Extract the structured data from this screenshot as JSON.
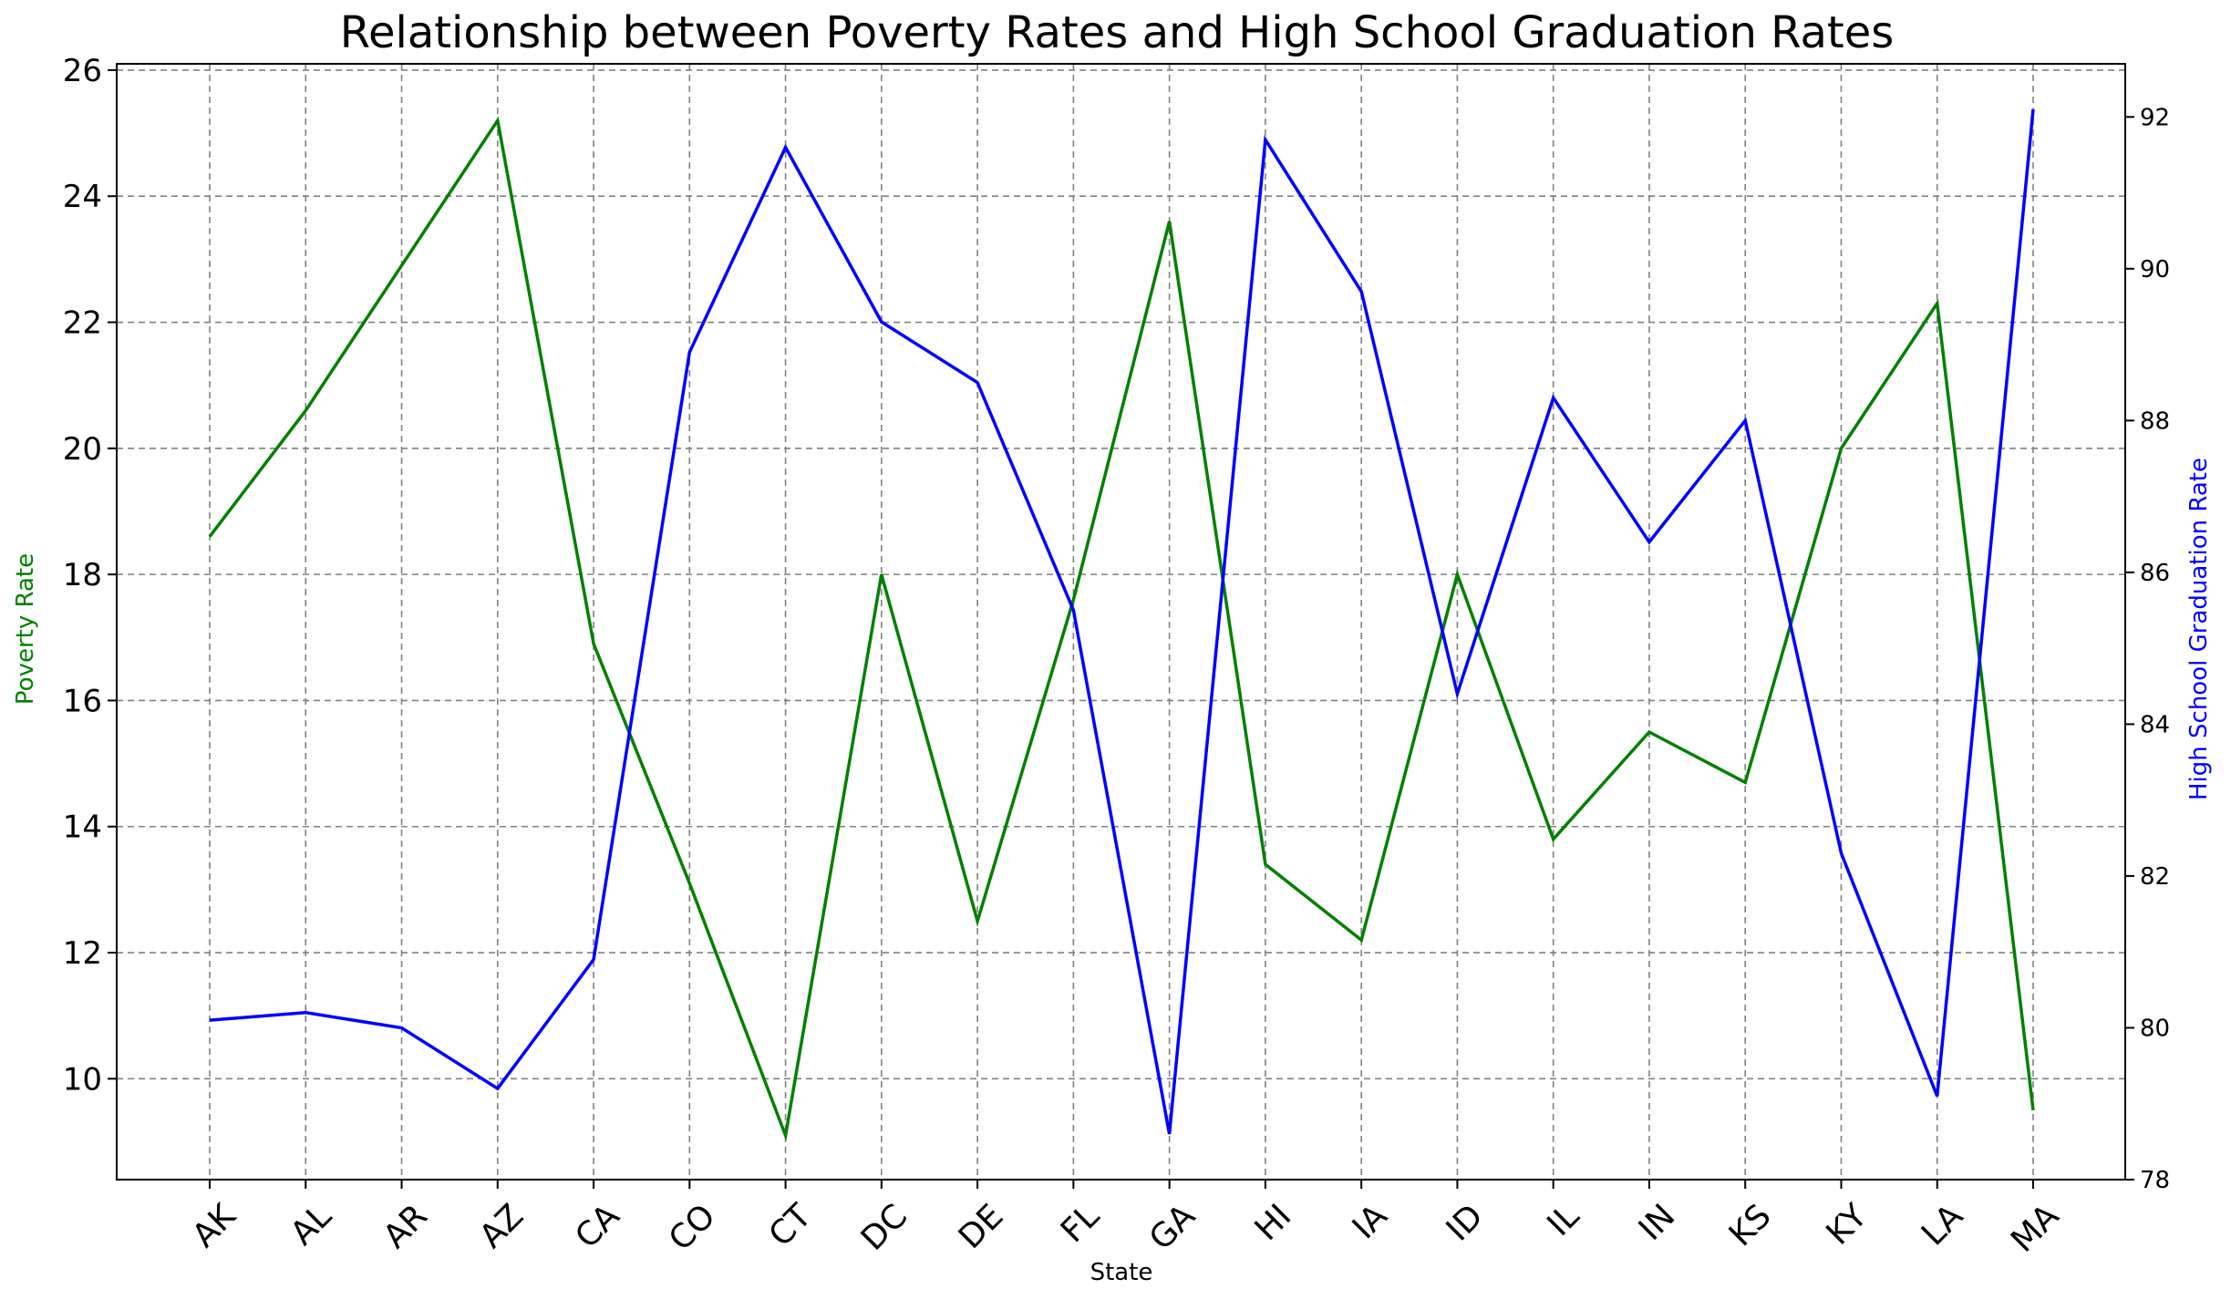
{
  "chart_data": {
    "type": "line",
    "title": "Relationship between Poverty Rates and High School Graduation Rates",
    "xlabel": "State",
    "ylabel_left": "Poverty Rate",
    "ylabel_right": "High School Graduation Rate",
    "categories": [
      "AK",
      "AL",
      "AR",
      "AZ",
      "CA",
      "CO",
      "CT",
      "DC",
      "DE",
      "FL",
      "GA",
      "HI",
      "IA",
      "ID",
      "IL",
      "IN",
      "KS",
      "KY",
      "LA",
      "MA"
    ],
    "y_left": {
      "ylim": [
        8.4,
        26.1
      ],
      "ticks": [
        10,
        12,
        14,
        16,
        18,
        20,
        22,
        24,
        26
      ]
    },
    "y_right": {
      "ylim": [
        78.0,
        92.7
      ],
      "ticks": [
        78,
        80,
        82,
        84,
        86,
        88,
        90,
        92
      ]
    },
    "grid": true,
    "colors": {
      "poverty": "#008000",
      "graduation": "#0000ff",
      "grid": "#808080"
    },
    "series": [
      {
        "axis": "left",
        "values": [
          18.6,
          20.6,
          22.9,
          25.2,
          16.9,
          13.1,
          9.1,
          18.0,
          12.5,
          17.6,
          23.6,
          13.4,
          12.2,
          18.0,
          13.8,
          15.5,
          14.7,
          20.0,
          22.3,
          9.5
        ]
      },
      {
        "axis": "right",
        "values": [
          80.1,
          80.2,
          80.0,
          79.2,
          80.9,
          88.9,
          91.6,
          89.3,
          88.5,
          85.5,
          78.6,
          91.7,
          89.7,
          84.4,
          88.3,
          86.4,
          88.0,
          82.3,
          79.1,
          92.1
        ]
      }
    ]
  }
}
